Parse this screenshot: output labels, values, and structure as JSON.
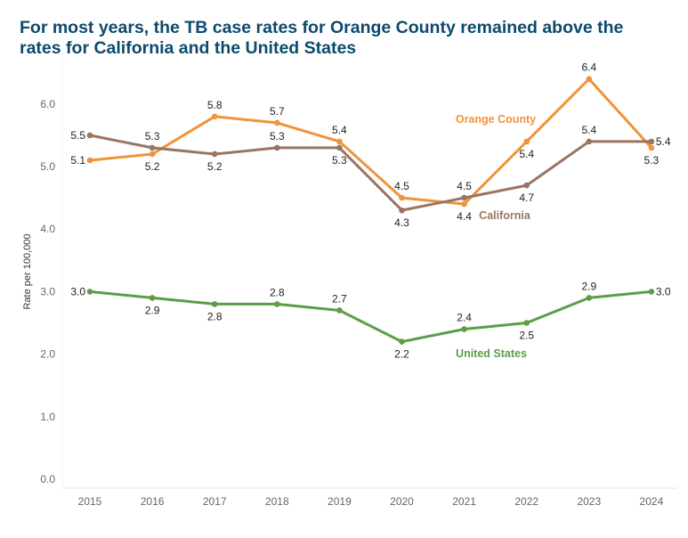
{
  "chart_data": {
    "type": "line",
    "title": "For most years, the TB case rates for Orange County remained above the rates for California and the United States",
    "xlabel": "",
    "ylabel": "Rate per 100,000",
    "x": [
      "2015",
      "2016",
      "2017",
      "2018",
      "2019",
      "2020",
      "2021",
      "2022",
      "2023",
      "2024"
    ],
    "ylim": [
      0,
      6.8
    ],
    "yticks": [
      0.0,
      1.0,
      2.0,
      3.0,
      4.0,
      5.0,
      6.0
    ],
    "ytick_labels": [
      "0.0",
      "1.0",
      "2.0",
      "3.0",
      "4.0",
      "5.0",
      "6.0"
    ],
    "grid": false,
    "series": [
      {
        "name": "Orange County",
        "color": "#f0933a",
        "values": [
          5.1,
          5.2,
          5.8,
          5.7,
          5.4,
          4.5,
          4.4,
          5.4,
          6.4,
          5.3
        ],
        "labels": [
          "5.1",
          "5.2",
          "5.8",
          "5.7",
          "5.4",
          "4.5",
          "4.4",
          "5.4",
          "6.4",
          "5.3"
        ],
        "label_pos": [
          "left",
          "below",
          "above",
          "above",
          "above",
          "above",
          "below",
          "below",
          "above",
          "below"
        ]
      },
      {
        "name": "California",
        "color": "#9a7562",
        "values": [
          5.5,
          5.3,
          5.2,
          5.3,
          5.3,
          4.3,
          4.5,
          4.7,
          5.4,
          5.4
        ],
        "labels": [
          "5.5",
          "5.3",
          "5.2",
          "5.3",
          "5.3",
          "4.3",
          "4.5",
          "4.7",
          "5.4",
          "5.4"
        ],
        "label_pos": [
          "left",
          "above",
          "below",
          "above",
          "below",
          "below",
          "above",
          "below",
          "above",
          "right"
        ]
      },
      {
        "name": "United States",
        "color": "#5b9e47",
        "values": [
          3.0,
          2.9,
          2.8,
          2.8,
          2.7,
          2.2,
          2.4,
          2.5,
          2.9,
          3.0
        ],
        "labels": [
          "3.0",
          "2.9",
          "2.8",
          "2.8",
          "2.7",
          "2.2",
          "2.4",
          "2.5",
          "2.9",
          "3.0"
        ],
        "label_pos": [
          "left",
          "below",
          "below",
          "above",
          "above",
          "below",
          "above",
          "below",
          "above",
          "right"
        ]
      }
    ]
  }
}
